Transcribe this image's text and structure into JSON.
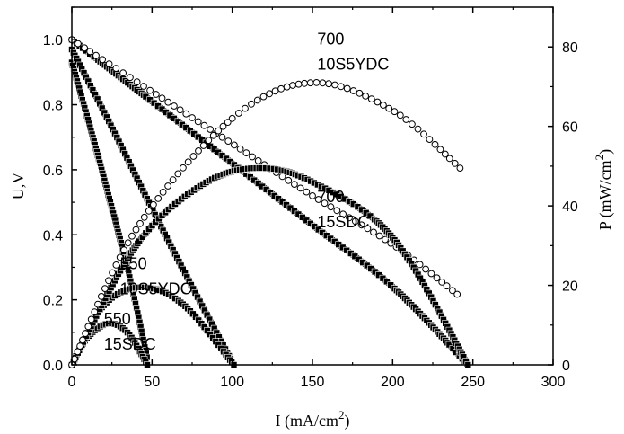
{
  "chart_data": {
    "type": "scatter",
    "title": "",
    "xlabel": "I (mA/cm",
    "xlabel_sup": "2",
    "xlabel_tail": ")",
    "ylabel": "U,V",
    "y2label": "P (mW/cm",
    "y2label_sup": "2",
    "y2label_tail": ")",
    "xlim": [
      0,
      300
    ],
    "ylim": [
      0,
      1.1
    ],
    "y2lim": [
      0,
      90
    ],
    "xticks": [
      "0",
      "50",
      "100",
      "150",
      "200",
      "250",
      "300"
    ],
    "yticks": [
      "0.0",
      "0.2",
      "0.4",
      "0.6",
      "0.8",
      "1.0"
    ],
    "y2ticks": [
      "0",
      "20",
      "40",
      "60",
      "80"
    ],
    "grid": false,
    "series": [
      {
        "axis": "left",
        "marker": "filled",
        "points": [
          [
            0,
            0.93
          ],
          [
            12,
            0.72
          ],
          [
            24,
            0.5
          ],
          [
            36,
            0.27
          ],
          [
            47,
            0.02
          ]
        ]
      },
      {
        "axis": "left",
        "marker": "filled",
        "points": [
          [
            0,
            0.97
          ],
          [
            25,
            0.73
          ],
          [
            50,
            0.48
          ],
          [
            75,
            0.24
          ],
          [
            101,
            0.0
          ]
        ]
      },
      {
        "axis": "left",
        "marker": "filled",
        "points": [
          [
            0,
            1.0
          ],
          [
            50,
            0.81
          ],
          [
            100,
            0.62
          ],
          [
            150,
            0.43
          ],
          [
            200,
            0.24
          ],
          [
            247,
            0.0
          ]
        ]
      },
      {
        "axis": "left",
        "marker": "open",
        "points": [
          [
            0,
            1.0
          ],
          [
            50,
            0.84
          ],
          [
            100,
            0.68
          ],
          [
            150,
            0.52
          ],
          [
            200,
            0.37
          ],
          [
            242,
            0.21
          ]
        ]
      },
      {
        "axis": "right",
        "marker": "filled",
        "points": [
          [
            0,
            0
          ],
          [
            10,
            7
          ],
          [
            23,
            10.4
          ],
          [
            35,
            8
          ],
          [
            47,
            0
          ]
        ]
      },
      {
        "axis": "right",
        "marker": "filled",
        "points": [
          [
            0,
            0
          ],
          [
            20,
            15
          ],
          [
            44,
            19.5
          ],
          [
            70,
            15
          ],
          [
            101,
            0
          ]
        ]
      },
      {
        "axis": "right",
        "marker": "filled",
        "points": [
          [
            0,
            0
          ],
          [
            40,
            30
          ],
          [
            80,
            45
          ],
          [
            115,
            49.5
          ],
          [
            150,
            46
          ],
          [
            200,
            32
          ],
          [
            247,
            0
          ]
        ]
      },
      {
        "axis": "right",
        "marker": "open",
        "points": [
          [
            0,
            0
          ],
          [
            40,
            34
          ],
          [
            100,
            62
          ],
          [
            150,
            71
          ],
          [
            200,
            64
          ],
          [
            242,
            49.5
          ]
        ]
      }
    ],
    "annotations": [
      {
        "line1": "700",
        "line2": "10S5YDC",
        "x": 153,
        "y": 0.985
      },
      {
        "line1": "700",
        "line2": "15SDC",
        "x": 153,
        "y": 0.5
      },
      {
        "line1": "550",
        "line2": "10S5YDC",
        "x": 30,
        "y": 0.295
      },
      {
        "line1": "550",
        "line2": "15SDC",
        "x": 20,
        "y": 0.125
      }
    ]
  }
}
